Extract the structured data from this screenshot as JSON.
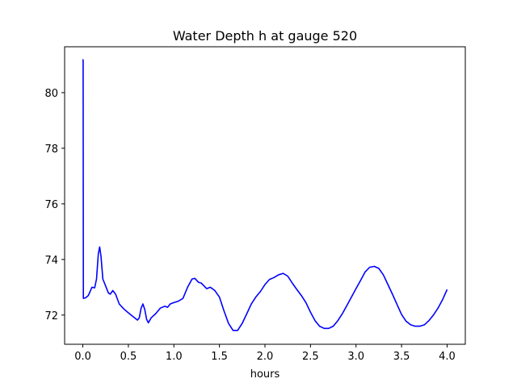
{
  "chart_data": {
    "type": "line",
    "title": "Water Depth h at gauge 520",
    "xlabel": "hours",
    "ylabel": "",
    "xlim": [
      -0.2,
      4.2
    ],
    "ylim": [
      70.95,
      81.65
    ],
    "xticks": [
      0.0,
      0.5,
      1.0,
      1.5,
      2.0,
      2.5,
      3.0,
      3.5,
      4.0
    ],
    "xtick_labels": [
      "0.0",
      "0.5",
      "1.0",
      "1.5",
      "2.0",
      "2.5",
      "3.0",
      "3.5",
      "4.0"
    ],
    "yticks": [
      72,
      74,
      76,
      78,
      80
    ],
    "ytick_labels": [
      "72",
      "74",
      "76",
      "78",
      "80"
    ],
    "grid": false,
    "series": [
      {
        "color": "#0000ff",
        "points": [
          [
            0.0,
            81.2
          ],
          [
            0.003,
            81.15
          ],
          [
            0.006,
            72.6
          ],
          [
            0.03,
            72.62
          ],
          [
            0.06,
            72.7
          ],
          [
            0.08,
            72.85
          ],
          [
            0.1,
            73.0
          ],
          [
            0.13,
            72.98
          ],
          [
            0.15,
            73.3
          ],
          [
            0.17,
            74.2
          ],
          [
            0.185,
            74.45
          ],
          [
            0.2,
            74.1
          ],
          [
            0.22,
            73.3
          ],
          [
            0.25,
            73.05
          ],
          [
            0.28,
            72.8
          ],
          [
            0.3,
            72.75
          ],
          [
            0.33,
            72.88
          ],
          [
            0.36,
            72.75
          ],
          [
            0.4,
            72.4
          ],
          [
            0.45,
            72.22
          ],
          [
            0.5,
            72.08
          ],
          [
            0.55,
            71.95
          ],
          [
            0.6,
            71.82
          ],
          [
            0.62,
            71.9
          ],
          [
            0.64,
            72.25
          ],
          [
            0.66,
            72.4
          ],
          [
            0.68,
            72.2
          ],
          [
            0.7,
            71.85
          ],
          [
            0.72,
            71.72
          ],
          [
            0.75,
            71.9
          ],
          [
            0.8,
            72.05
          ],
          [
            0.85,
            72.25
          ],
          [
            0.9,
            72.32
          ],
          [
            0.93,
            72.28
          ],
          [
            0.96,
            72.4
          ],
          [
            1.0,
            72.45
          ],
          [
            1.05,
            72.5
          ],
          [
            1.1,
            72.6
          ],
          [
            1.15,
            73.0
          ],
          [
            1.2,
            73.3
          ],
          [
            1.23,
            73.32
          ],
          [
            1.27,
            73.18
          ],
          [
            1.3,
            73.15
          ],
          [
            1.33,
            73.05
          ],
          [
            1.36,
            72.95
          ],
          [
            1.4,
            73.0
          ],
          [
            1.45,
            72.88
          ],
          [
            1.5,
            72.65
          ],
          [
            1.55,
            72.15
          ],
          [
            1.6,
            71.7
          ],
          [
            1.65,
            71.45
          ],
          [
            1.7,
            71.45
          ],
          [
            1.75,
            71.7
          ],
          [
            1.8,
            72.05
          ],
          [
            1.85,
            72.4
          ],
          [
            1.9,
            72.65
          ],
          [
            1.95,
            72.85
          ],
          [
            2.0,
            73.1
          ],
          [
            2.05,
            73.28
          ],
          [
            2.1,
            73.35
          ],
          [
            2.15,
            73.45
          ],
          [
            2.2,
            73.5
          ],
          [
            2.25,
            73.4
          ],
          [
            2.3,
            73.15
          ],
          [
            2.35,
            72.92
          ],
          [
            2.4,
            72.7
          ],
          [
            2.45,
            72.45
          ],
          [
            2.5,
            72.1
          ],
          [
            2.55,
            71.8
          ],
          [
            2.6,
            71.6
          ],
          [
            2.65,
            71.52
          ],
          [
            2.7,
            71.52
          ],
          [
            2.75,
            71.6
          ],
          [
            2.8,
            71.8
          ],
          [
            2.85,
            72.05
          ],
          [
            2.9,
            72.35
          ],
          [
            2.95,
            72.65
          ],
          [
            3.0,
            72.95
          ],
          [
            3.05,
            73.25
          ],
          [
            3.1,
            73.55
          ],
          [
            3.15,
            73.72
          ],
          [
            3.2,
            73.75
          ],
          [
            3.25,
            73.68
          ],
          [
            3.3,
            73.45
          ],
          [
            3.35,
            73.1
          ],
          [
            3.4,
            72.75
          ],
          [
            3.45,
            72.38
          ],
          [
            3.5,
            72.02
          ],
          [
            3.55,
            71.78
          ],
          [
            3.6,
            71.65
          ],
          [
            3.65,
            71.6
          ],
          [
            3.7,
            71.6
          ],
          [
            3.75,
            71.65
          ],
          [
            3.8,
            71.8
          ],
          [
            3.85,
            72.0
          ],
          [
            3.9,
            72.25
          ],
          [
            3.95,
            72.55
          ],
          [
            4.0,
            72.92
          ]
        ]
      }
    ]
  }
}
